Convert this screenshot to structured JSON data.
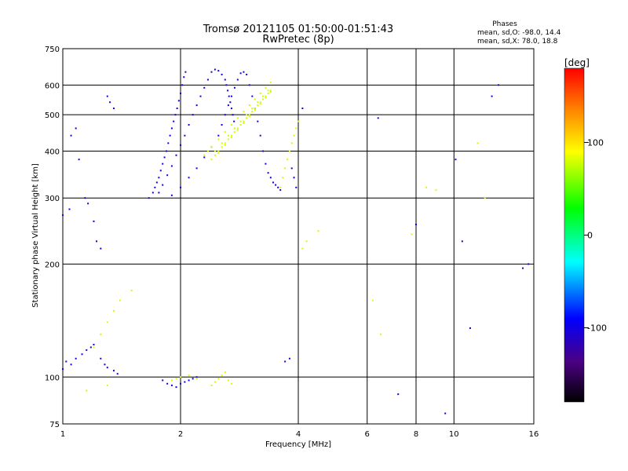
{
  "chart_data": {
    "type": "scatter",
    "title": "Tromsø 20121105 01:50:00-01:51:43",
    "subtitle": "RwPretec (8p)",
    "stats": {
      "heading": "Phases",
      "line1": "mean, sd,O: -98.0, 14.4",
      "line2": "mean, sd,X:  78.0, 18.8"
    },
    "xlabel": "Frequency [MHz]",
    "ylabel": "Stationary phase Virtual Height [km]",
    "x_scale": "log2",
    "y_scale": "log",
    "xlim": [
      1,
      16
    ],
    "ylim": [
      75,
      750
    ],
    "x_ticks": [
      1,
      2,
      4,
      6,
      8,
      10,
      16
    ],
    "x_tick_labels": [
      "1",
      "2",
      "4",
      "6",
      "8",
      "10",
      "16"
    ],
    "y_ticks": [
      75,
      100,
      200,
      300,
      400,
      500,
      600,
      750
    ],
    "y_tick_labels": [
      "75",
      "100",
      "200",
      "300",
      "400",
      "500",
      "600",
      "750"
    ],
    "grid": true,
    "colorbar": {
      "label": "[deg]",
      "range": [
        -180,
        180
      ],
      "ticks": [
        100,
        0,
        -100
      ],
      "tick_labels": [
        "100",
        "0",
        "-100"
      ]
    },
    "series": [
      {
        "color_phase": -100,
        "points": [
          [
            1.66,
            300
          ],
          [
            1.7,
            310
          ],
          [
            1.72,
            320
          ],
          [
            1.74,
            330
          ],
          [
            1.76,
            340
          ],
          [
            1.78,
            355
          ],
          [
            1.8,
            370
          ],
          [
            1.82,
            385
          ],
          [
            1.84,
            400
          ],
          [
            1.86,
            420
          ],
          [
            1.88,
            440
          ],
          [
            1.9,
            460
          ],
          [
            1.92,
            480
          ],
          [
            1.94,
            500
          ],
          [
            1.96,
            520
          ],
          [
            1.98,
            545
          ],
          [
            2.0,
            570
          ],
          [
            2.02,
            600
          ],
          [
            2.04,
            630
          ],
          [
            2.06,
            650
          ],
          [
            1.76,
            310
          ],
          [
            1.8,
            325
          ],
          [
            1.85,
            345
          ],
          [
            1.9,
            365
          ],
          [
            1.95,
            390
          ],
          [
            2.0,
            415
          ],
          [
            2.05,
            440
          ],
          [
            2.1,
            470
          ],
          [
            2.15,
            500
          ],
          [
            2.2,
            530
          ],
          [
            2.25,
            560
          ],
          [
            2.3,
            590
          ],
          [
            2.35,
            620
          ],
          [
            2.4,
            650
          ],
          [
            2.45,
            660
          ],
          [
            2.5,
            655
          ],
          [
            2.55,
            640
          ],
          [
            2.6,
            620
          ],
          [
            2.62,
            600
          ],
          [
            2.64,
            580
          ],
          [
            2.66,
            560
          ],
          [
            2.68,
            540
          ],
          [
            2.7,
            520
          ],
          [
            2.72,
            500
          ],
          [
            2.74,
            480
          ],
          [
            1.9,
            305
          ],
          [
            2.0,
            320
          ],
          [
            2.1,
            340
          ],
          [
            2.2,
            360
          ],
          [
            2.3,
            385
          ],
          [
            2.4,
            410
          ],
          [
            2.5,
            440
          ],
          [
            2.55,
            470
          ],
          [
            2.6,
            500
          ],
          [
            2.65,
            530
          ],
          [
            2.7,
            560
          ],
          [
            2.75,
            590
          ],
          [
            2.8,
            620
          ],
          [
            2.85,
            645
          ],
          [
            2.9,
            650
          ],
          [
            2.95,
            640
          ],
          [
            3.0,
            600
          ],
          [
            3.05,
            560
          ],
          [
            3.1,
            520
          ],
          [
            3.15,
            480
          ],
          [
            3.2,
            440
          ],
          [
            3.25,
            400
          ],
          [
            3.3,
            370
          ],
          [
            3.35,
            350
          ],
          [
            3.4,
            340
          ],
          [
            3.45,
            330
          ],
          [
            3.5,
            325
          ],
          [
            3.55,
            320
          ],
          [
            3.6,
            315
          ],
          [
            1.0,
            270
          ],
          [
            1.04,
            280
          ],
          [
            1.05,
            440
          ],
          [
            1.08,
            460
          ],
          [
            1.1,
            380
          ],
          [
            1.14,
            300
          ],
          [
            1.16,
            290
          ],
          [
            1.2,
            260
          ],
          [
            1.22,
            230
          ],
          [
            1.25,
            220
          ],
          [
            1.3,
            560
          ],
          [
            1.32,
            540
          ],
          [
            1.35,
            520
          ],
          [
            1.0,
            105
          ],
          [
            1.02,
            110
          ],
          [
            1.05,
            108
          ],
          [
            1.08,
            112
          ],
          [
            1.12,
            115
          ],
          [
            1.15,
            118
          ],
          [
            1.18,
            120
          ],
          [
            1.2,
            122
          ],
          [
            1.25,
            112
          ],
          [
            1.28,
            108
          ],
          [
            1.3,
            106
          ],
          [
            1.35,
            104
          ],
          [
            1.38,
            102
          ],
          [
            1.8,
            98
          ],
          [
            1.85,
            96
          ],
          [
            1.9,
            95
          ],
          [
            1.95,
            94
          ],
          [
            2.0,
            96
          ],
          [
            2.05,
            97
          ],
          [
            2.1,
            98
          ],
          [
            2.15,
            99
          ],
          [
            2.2,
            100
          ],
          [
            3.7,
            110
          ],
          [
            3.8,
            112
          ],
          [
            3.85,
            360
          ],
          [
            3.9,
            340
          ],
          [
            3.95,
            320
          ],
          [
            4.1,
            520
          ],
          [
            6.4,
            490
          ],
          [
            8.0,
            255
          ],
          [
            10.1,
            380
          ],
          [
            10.5,
            230
          ],
          [
            11.0,
            135
          ],
          [
            12.5,
            560
          ],
          [
            13.0,
            600
          ],
          [
            15.0,
            195
          ],
          [
            15.5,
            200
          ],
          [
            9.5,
            80
          ],
          [
            7.2,
            90
          ]
        ]
      },
      {
        "color_phase": 78,
        "points": [
          [
            2.4,
            380
          ],
          [
            2.45,
            390
          ],
          [
            2.5,
            400
          ],
          [
            2.55,
            410
          ],
          [
            2.6,
            420
          ],
          [
            2.65,
            430
          ],
          [
            2.7,
            440
          ],
          [
            2.75,
            450
          ],
          [
            2.8,
            460
          ],
          [
            2.85,
            470
          ],
          [
            2.9,
            480
          ],
          [
            2.95,
            490
          ],
          [
            3.0,
            500
          ],
          [
            3.05,
            510
          ],
          [
            3.1,
            520
          ],
          [
            3.15,
            530
          ],
          [
            3.2,
            540
          ],
          [
            3.25,
            550
          ],
          [
            3.3,
            560
          ],
          [
            3.35,
            570
          ],
          [
            3.4,
            580
          ],
          [
            2.45,
            400
          ],
          [
            2.55,
            420
          ],
          [
            2.65,
            440
          ],
          [
            2.75,
            460
          ],
          [
            2.85,
            480
          ],
          [
            2.95,
            500
          ],
          [
            3.05,
            520
          ],
          [
            3.15,
            540
          ],
          [
            3.25,
            560
          ],
          [
            3.35,
            580
          ],
          [
            2.3,
            390
          ],
          [
            2.35,
            400
          ],
          [
            2.4,
            410
          ],
          [
            2.5,
            430
          ],
          [
            2.6,
            450
          ],
          [
            2.7,
            470
          ],
          [
            2.8,
            490
          ],
          [
            2.9,
            510
          ],
          [
            3.0,
            530
          ],
          [
            3.1,
            550
          ],
          [
            3.2,
            570
          ],
          [
            3.3,
            590
          ],
          [
            3.4,
            610
          ],
          [
            2.5,
            395
          ],
          [
            2.6,
            415
          ],
          [
            2.7,
            435
          ],
          [
            2.8,
            455
          ],
          [
            2.9,
            475
          ],
          [
            3.0,
            495
          ],
          [
            3.1,
            515
          ],
          [
            3.2,
            535
          ],
          [
            3.3,
            555
          ],
          [
            3.4,
            575
          ],
          [
            2.4,
            95
          ],
          [
            2.45,
            97
          ],
          [
            2.5,
            99
          ],
          [
            2.55,
            101
          ],
          [
            2.6,
            103
          ],
          [
            2.65,
            98
          ],
          [
            2.7,
            96
          ],
          [
            1.9,
            98
          ],
          [
            1.95,
            99
          ],
          [
            2.0,
            100
          ],
          [
            2.1,
            101
          ],
          [
            2.2,
            99
          ],
          [
            3.6,
            320
          ],
          [
            3.65,
            340
          ],
          [
            3.7,
            360
          ],
          [
            3.75,
            380
          ],
          [
            3.8,
            400
          ],
          [
            3.85,
            420
          ],
          [
            3.9,
            440
          ],
          [
            3.95,
            460
          ],
          [
            4.0,
            480
          ],
          [
            4.1,
            220
          ],
          [
            4.2,
            230
          ],
          [
            4.5,
            245
          ],
          [
            6.2,
            160
          ],
          [
            6.5,
            130
          ],
          [
            7.8,
            240
          ],
          [
            8.5,
            320
          ],
          [
            9.0,
            315
          ],
          [
            11.5,
            420
          ],
          [
            12.0,
            300
          ],
          [
            1.2,
            120
          ],
          [
            1.25,
            130
          ],
          [
            1.3,
            140
          ],
          [
            1.35,
            150
          ],
          [
            1.4,
            160
          ],
          [
            1.5,
            170
          ],
          [
            1.15,
            92
          ],
          [
            1.3,
            95
          ]
        ]
      }
    ]
  }
}
